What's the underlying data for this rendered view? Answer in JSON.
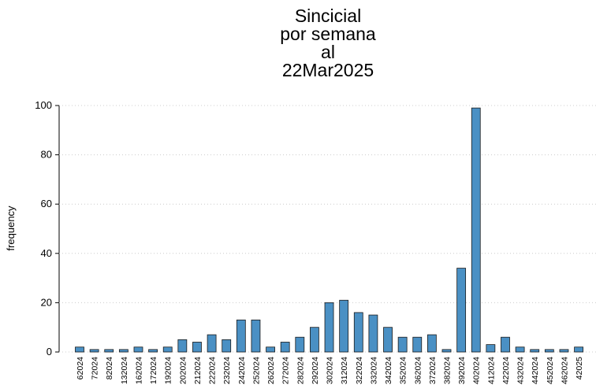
{
  "chart_data": {
    "type": "bar",
    "title": [
      "Sincicial",
      "por semana",
      "al",
      "22Mar2025"
    ],
    "y_label": "frequency",
    "categories": [
      "62024",
      "72024",
      "82024",
      "132024",
      "162024",
      "172024",
      "192024",
      "202024",
      "212024",
      "222024",
      "232024",
      "242024",
      "252024",
      "262024",
      "272024",
      "282024",
      "292024",
      "302024",
      "312024",
      "322024",
      "332024",
      "342024",
      "352024",
      "362024",
      "372024",
      "382024",
      "392024",
      "402024",
      "412024",
      "422024",
      "432024",
      "442024",
      "452024",
      "462024",
      "42025"
    ],
    "values": [
      2,
      1,
      1,
      1,
      2,
      1,
      2,
      5,
      4,
      7,
      5,
      13,
      13,
      2,
      4,
      6,
      10,
      20,
      21,
      16,
      15,
      10,
      6,
      6,
      7,
      1,
      34,
      99,
      3,
      6,
      2,
      1,
      1,
      1,
      2
    ],
    "color": "#4a90c4",
    "ylim": [
      0,
      100
    ],
    "yticks": [
      0,
      20,
      40,
      60,
      80,
      100
    ],
    "grid": true
  }
}
